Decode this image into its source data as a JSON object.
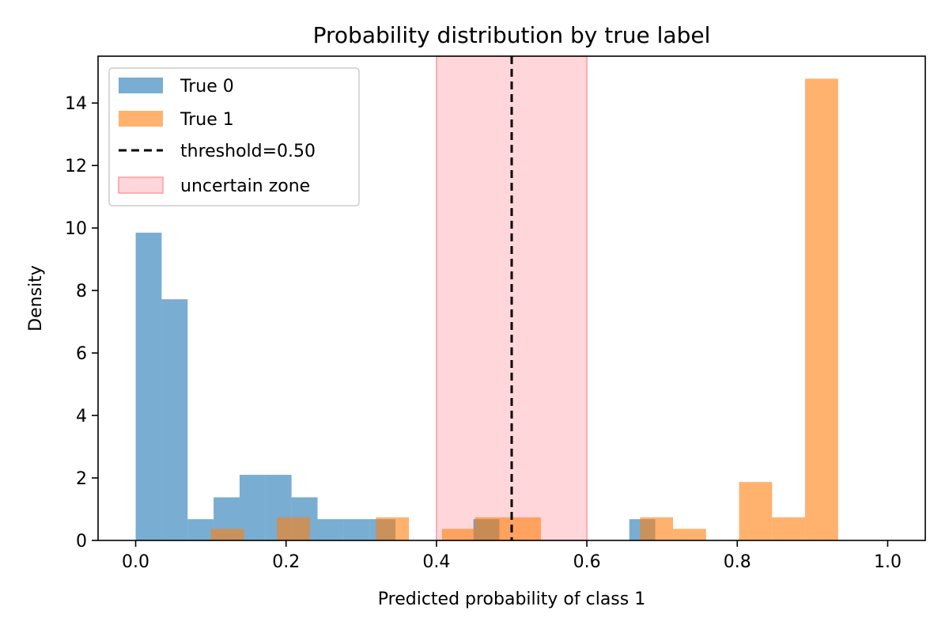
{
  "chart_data": {
    "type": "bar",
    "title": "Probability distribution by true label",
    "xlabel": "Predicted probability of class 1",
    "ylabel": "Density",
    "xlim": [
      -0.05,
      1.05
    ],
    "ylim": [
      0,
      15.5
    ],
    "xticks": [
      "0.0",
      "0.2",
      "0.4",
      "0.6",
      "0.8",
      "1.0"
    ],
    "yticks": [
      "0",
      "2",
      "4",
      "6",
      "8",
      "10",
      "12",
      "14"
    ],
    "grid": false,
    "legend_position": "top-left",
    "series": [
      {
        "name": "True 0",
        "color": "#1f77b4",
        "opacity": 0.6,
        "bin_start": 0.0,
        "bin_width": 0.03455,
        "values": [
          9.85,
          7.72,
          0.68,
          1.38,
          2.1,
          2.1,
          1.38,
          0.68,
          0.68,
          0.68,
          0,
          0,
          0,
          0.68,
          0,
          0,
          0,
          0,
          0,
          0.68,
          0,
          0,
          0,
          0,
          0,
          0,
          0,
          0,
          0
        ]
      },
      {
        "name": "True 1",
        "color": "#ff7f0e",
        "opacity": 0.6,
        "bin_start": 0.1,
        "bin_width": 0.0439,
        "values": [
          0.37,
          0,
          0.74,
          0,
          0,
          0.74,
          0,
          0.37,
          0.74,
          0.74,
          0,
          0,
          0,
          0.74,
          0.37,
          0,
          1.87,
          0.74,
          14.78
        ]
      }
    ],
    "threshold": {
      "label": "threshold=0.50",
      "x": 0.5,
      "color": "#000000",
      "dash": "dashed"
    },
    "uncertain_zone": {
      "label": "uncertain zone",
      "x0": 0.4,
      "x1": 0.6,
      "color": "#ffb6bb"
    }
  }
}
